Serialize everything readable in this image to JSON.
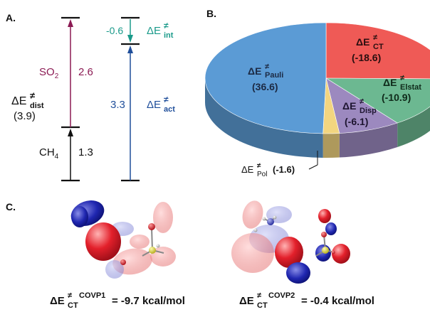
{
  "panels": {
    "a_label": "A.",
    "b_label": "B.",
    "c_label": "C."
  },
  "energy_diagram": {
    "distortion": {
      "symbol": "ΔE",
      "subscript": "dist",
      "value": "(3.9)",
      "so2": {
        "fragment": "SO",
        "fragment_sub": "2",
        "value": "2.6"
      },
      "ch4": {
        "fragment": "CH",
        "fragment_sub": "4",
        "value": "1.3"
      }
    },
    "interaction": {
      "value": "-0.6",
      "symbol": "ΔE",
      "subscript": "int"
    },
    "activation": {
      "value": "3.3",
      "symbol": "ΔE",
      "subscript": "act"
    },
    "neq_symbol": "≠",
    "colors": {
      "distortion": "#8b1a53",
      "ch4": "#111111",
      "interaction": "#1a9a8a",
      "activation": "#1f4e9a"
    }
  },
  "pie": {
    "slices": [
      {
        "term": "Pauli",
        "label": "(36.6)",
        "value": 36.6,
        "color": "#5b9bd5"
      },
      {
        "term": "CT",
        "label": "(-18.6)",
        "value": 18.6,
        "color": "#ef5a56"
      },
      {
        "term": "Elstat",
        "label": "(-10.9)",
        "value": 10.9,
        "color": "#6cb891"
      },
      {
        "term": "Disp",
        "label": "(-6.1)",
        "value": 6.1,
        "color": "#9c89bf"
      },
      {
        "term": "Pol",
        "label": "(-1.6)",
        "value": 1.6,
        "color": "#f2d580"
      }
    ],
    "symbol": "ΔE",
    "neq_symbol": "≠"
  },
  "orbitals": {
    "covp1": {
      "symbol": "ΔE",
      "neq": "≠",
      "subscript": "CT",
      "superscript": "COVP1",
      "value": "= -9.7 kcal/mol"
    },
    "covp2": {
      "symbol": "ΔE",
      "neq": "≠",
      "subscript": "CT",
      "superscript": "COVP2",
      "value": "= -0.4 kcal/mol"
    }
  }
}
